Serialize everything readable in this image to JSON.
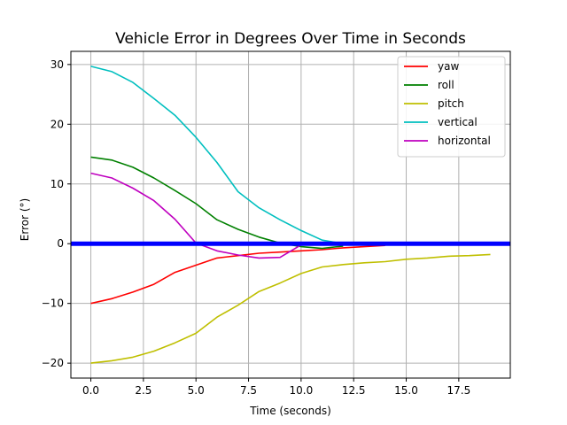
{
  "chart_data": {
    "type": "line",
    "title": "Vehicle Error in Degrees Over Time in Seconds",
    "xlabel": "Time (seconds)",
    "ylabel": "Error (°)",
    "xlim": [
      -0.95,
      19.95
    ],
    "ylim": [
      -22.5,
      32.2
    ],
    "xticks": [
      0.0,
      2.5,
      5.0,
      7.5,
      10.0,
      12.5,
      15.0,
      17.5
    ],
    "xtick_labels": [
      "0.0",
      "2.5",
      "5.0",
      "7.5",
      "10.0",
      "12.5",
      "15.0",
      "17.5"
    ],
    "yticks": [
      -20,
      -10,
      0,
      10,
      20,
      30
    ],
    "ytick_labels": [
      "−20",
      "−10",
      "0",
      "10",
      "20",
      "30"
    ],
    "grid": true,
    "legend_position": "top-right",
    "series": [
      {
        "name": "yaw",
        "color": "#ff0000",
        "x": [
          0,
          1,
          2,
          3,
          4,
          5,
          6,
          7,
          8,
          9,
          10,
          11,
          12,
          13,
          14
        ],
        "y": [
          -10.0,
          -9.2,
          -8.1,
          -6.8,
          -4.8,
          -3.6,
          -2.4,
          -2.0,
          -1.6,
          -1.4,
          -1.2,
          -1.0,
          -0.7,
          -0.5,
          -0.3
        ]
      },
      {
        "name": "roll",
        "color": "#008000",
        "x": [
          0,
          1,
          2,
          3,
          4,
          5,
          6,
          7,
          8,
          9,
          10,
          11,
          12
        ],
        "y": [
          14.5,
          14.0,
          12.8,
          11.0,
          8.9,
          6.7,
          4.0,
          2.4,
          1.1,
          0.1,
          -0.5,
          -0.8,
          -0.4
        ]
      },
      {
        "name": "pitch",
        "color": "#bfbf00",
        "x": [
          0,
          1,
          2,
          3,
          4,
          5,
          6,
          7,
          8,
          9,
          10,
          11,
          12,
          13,
          14,
          15,
          16,
          17,
          18,
          19
        ],
        "y": [
          -20.0,
          -19.6,
          -19.0,
          -18.0,
          -16.6,
          -15.0,
          -12.3,
          -10.3,
          -8.0,
          -6.6,
          -5.0,
          -3.9,
          -3.5,
          -3.2,
          -3.0,
          -2.6,
          -2.4,
          -2.1,
          -2.0,
          -1.8
        ]
      },
      {
        "name": "vertical",
        "color": "#00bfbf",
        "x": [
          0,
          1,
          2,
          3,
          4,
          5,
          6,
          7,
          8,
          9,
          10,
          11,
          12
        ],
        "y": [
          29.7,
          28.8,
          27.0,
          24.3,
          21.5,
          17.8,
          13.6,
          8.7,
          6.0,
          4.0,
          2.2,
          0.6,
          0.0
        ]
      },
      {
        "name": "horizontal",
        "color": "#bf00bf",
        "x": [
          0,
          1,
          2,
          3,
          4,
          5,
          6,
          7,
          8,
          9,
          10
        ],
        "y": [
          11.8,
          11.0,
          9.3,
          7.2,
          4.1,
          0.1,
          -1.2,
          -1.9,
          -2.4,
          -2.3,
          -0.2
        ]
      }
    ],
    "reference_line": {
      "y": 0,
      "color": "#0000ff"
    }
  }
}
